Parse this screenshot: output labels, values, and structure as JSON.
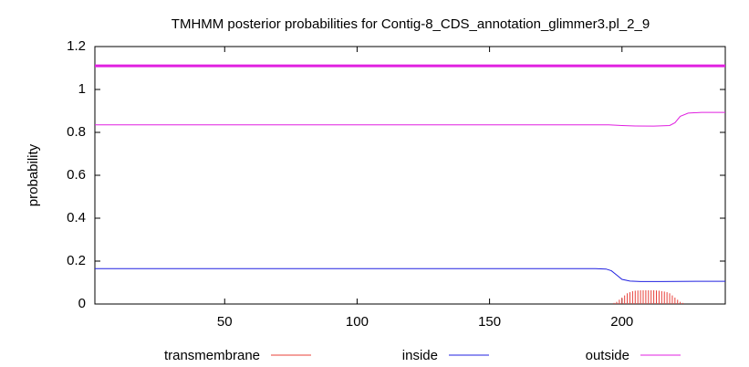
{
  "chart_data": {
    "type": "line",
    "title": "TMHMM posterior probabilities for Contig-8_CDS_annotation_glimmer3.pl_2_9",
    "ylabel": "probability",
    "xlim": [
      1,
      239
    ],
    "ylim": [
      0,
      1.2
    ],
    "xticks": [
      50,
      100,
      150,
      200
    ],
    "yticks": [
      0,
      0.2,
      0.4,
      0.6,
      0.8,
      1,
      1.2
    ],
    "series": [
      {
        "name": "transmembrane",
        "color": "#e8403a",
        "style": "impulses",
        "x": [
          197,
          198,
          199,
          200,
          201,
          202,
          203,
          204,
          205,
          206,
          207,
          208,
          209,
          210,
          211,
          212,
          213,
          214,
          215,
          216,
          217,
          218,
          219,
          220,
          221,
          222,
          223
        ],
        "values": [
          0.005,
          0.01,
          0.02,
          0.03,
          0.04,
          0.05,
          0.055,
          0.06,
          0.062,
          0.063,
          0.064,
          0.064,
          0.064,
          0.064,
          0.064,
          0.064,
          0.063,
          0.062,
          0.06,
          0.058,
          0.055,
          0.05,
          0.04,
          0.03,
          0.02,
          0.01,
          0.005
        ]
      },
      {
        "name": "inside",
        "color": "#2020e0",
        "style": "line",
        "x": [
          1,
          190,
          194,
          196,
          198,
          200,
          203,
          207,
          215,
          230,
          239
        ],
        "values": [
          0.165,
          0.165,
          0.163,
          0.155,
          0.135,
          0.115,
          0.107,
          0.105,
          0.105,
          0.106,
          0.106
        ]
      },
      {
        "name": "outside",
        "color": "#e020e0",
        "style": "line",
        "x": [
          1,
          195,
          200,
          205,
          212,
          218,
          220,
          222,
          225,
          230,
          239
        ],
        "values": [
          0.835,
          0.835,
          0.832,
          0.83,
          0.829,
          0.832,
          0.845,
          0.875,
          0.89,
          0.893,
          0.893
        ]
      },
      {
        "color": "#e020e0",
        "style": "thick",
        "x": [
          1,
          239
        ],
        "values": [
          1.11,
          1.11
        ]
      }
    ]
  }
}
